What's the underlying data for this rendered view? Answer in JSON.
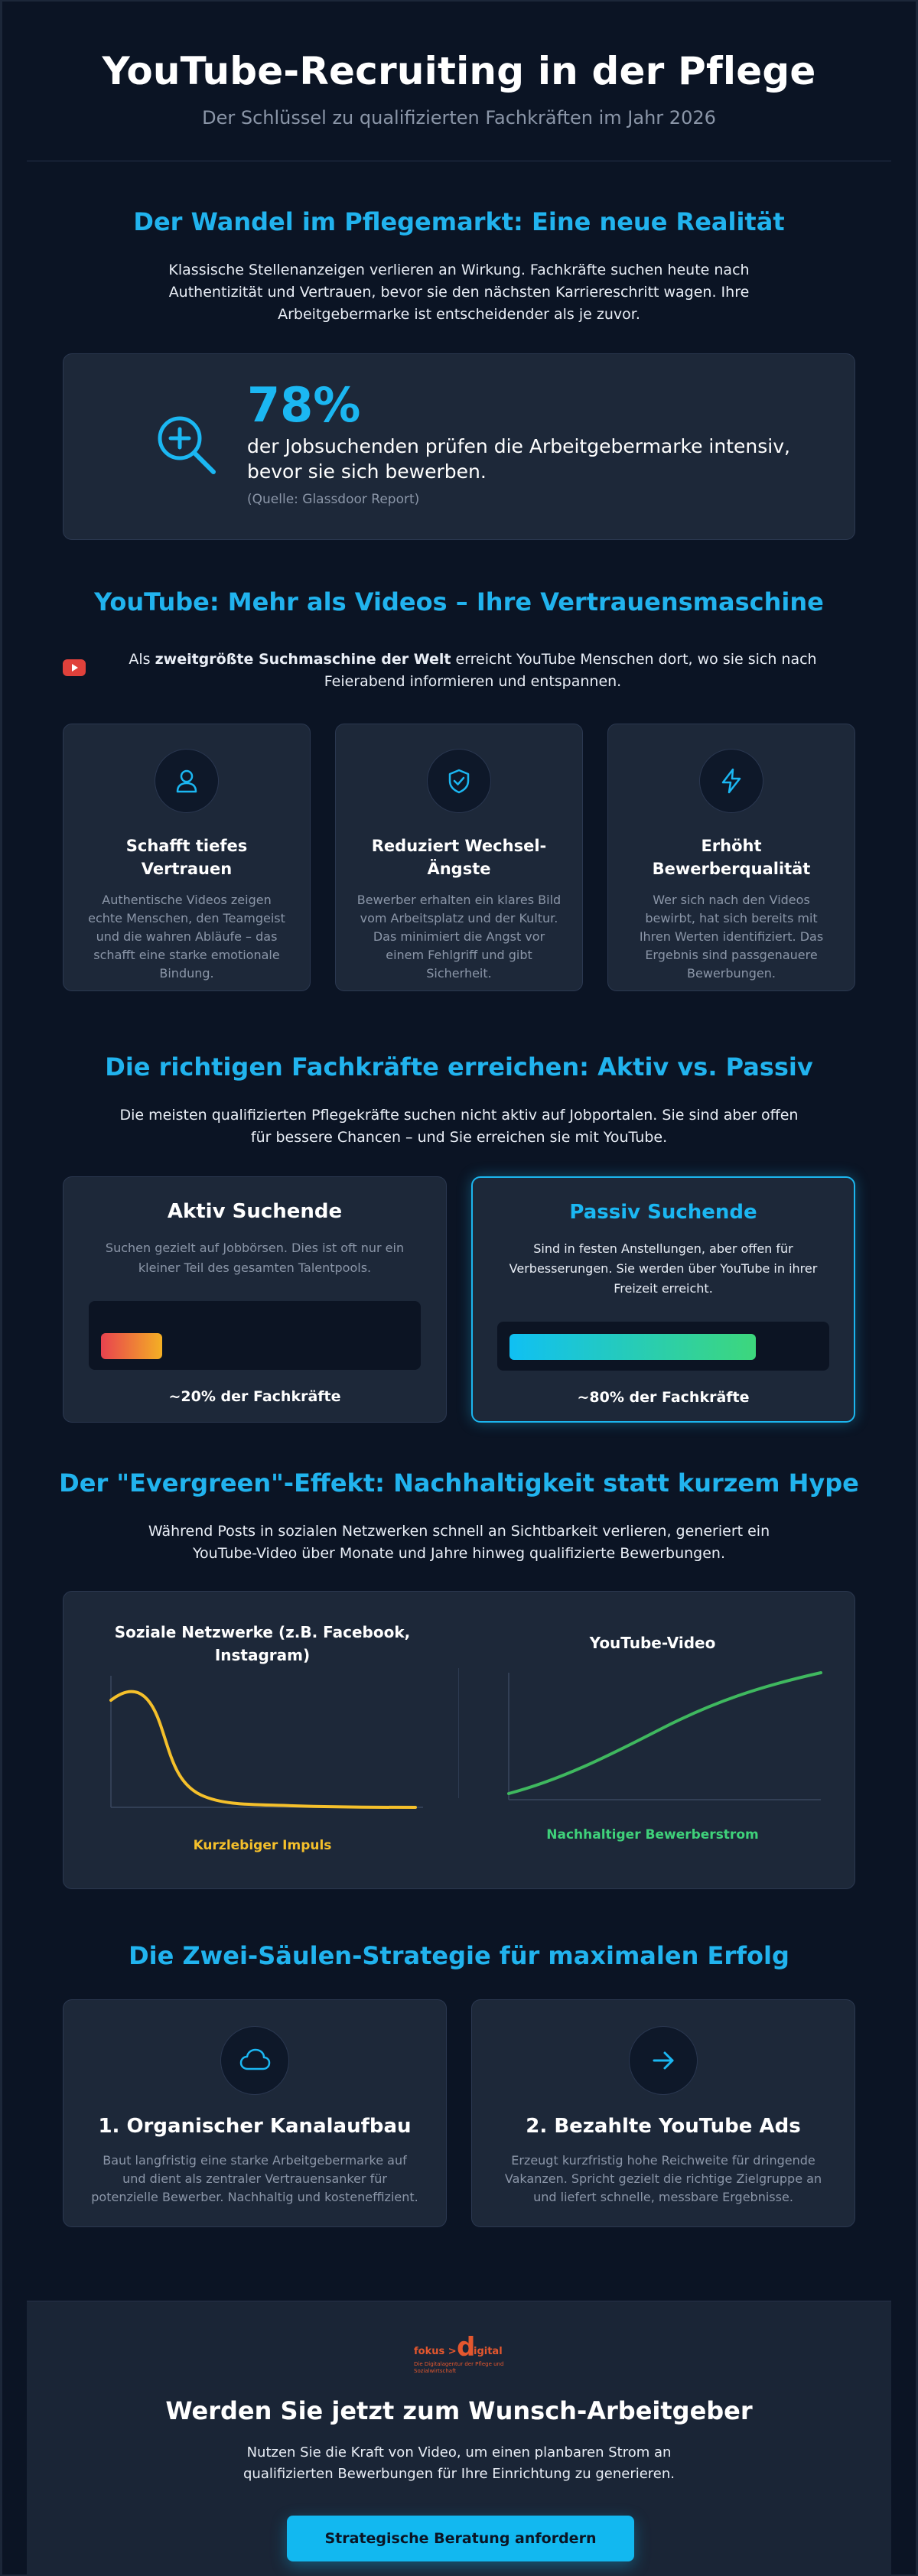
{
  "header": {
    "title": "YouTube-Recruiting in der Pflege",
    "subtitle": "Der Schlüssel zu qualifizierten Fachkräften im Jahr 2026"
  },
  "section1": {
    "title": "Der Wandel im Pflegemarkt: Eine neue Realität",
    "intro": "Klassische Stellenanzeigen verlieren an Wirkung. Fachkräfte suchen heute nach Authentizität und Vertrauen, bevor sie den nächsten Karriereschritt wagen. Ihre Arbeitgebermarke ist entscheidender als je zuvor.",
    "stat": {
      "icon": "search-plus-icon",
      "number": "78%",
      "text": "der Jobsuchenden prüfen die Arbeitgebermarke intensiv, bevor sie sich bewerben.",
      "source": "(Quelle: Glassdoor Report)"
    }
  },
  "section2": {
    "title": "YouTube: Mehr als Videos – Ihre Vertrauensmaschine",
    "intro_prefix": "Als ",
    "intro_bold": "zweitgrößte Suchmaschine der Welt",
    "intro_suffix": " erreicht YouTube Menschen dort, wo sie sich nach Feierabend informieren und entspannen.",
    "features": [
      {
        "icon": "user-icon",
        "title": "Schafft tiefes Vertrauen",
        "desc": "Authentische Videos zeigen echte Menschen, den Teamgeist und die wahren Abläufe – das schafft eine starke emotionale Bindung."
      },
      {
        "icon": "shield-check-icon",
        "title": "Reduziert Wechsel-Ängste",
        "desc": "Bewerber erhalten ein klares Bild vom Arbeitsplatz und der Kultur. Das minimiert die Angst vor einem Fehlgriff und gibt Sicherheit."
      },
      {
        "icon": "lightning-icon",
        "title": "Erhöht Bewerberqualität",
        "desc": "Wer sich nach den Videos bewirbt, hat sich bereits mit Ihren Werten identifiziert. Das Ergebnis sind passgenauere Bewerbungen."
      }
    ]
  },
  "section3": {
    "title": "Die richtigen Fachkräfte erreichen: Aktiv vs. Passiv",
    "intro": "Die meisten qualifizierten Pflegekräfte suchen nicht aktiv auf Jobportalen. Sie sind aber offen für bessere Chancen – und Sie erreichen sie mit YouTube.",
    "active": {
      "title": "Aktiv Suchende",
      "desc": "Suchen gezielt auf Jobbörsen. Dies ist oft nur ein kleiner Teil des gesamten Talentpools.",
      "share": 0.2,
      "label": "~20% der Fachkräfte"
    },
    "passive": {
      "title": "Passiv Suchende",
      "desc": "Sind in festen Anstellungen, aber offen für Verbesserungen. Sie werden über YouTube in ihrer Freizeit erreicht.",
      "share": 0.8,
      "label": "~80% der Fachkräfte"
    }
  },
  "section4": {
    "title": "Der \"Evergreen\"-Effekt: Nachhaltigkeit statt kurzem Hype",
    "intro": "Während Posts in sozialen Netzwerken schnell an Sichtbarkeit verlieren, generiert ein YouTube-Video über Monate und Jahre hinweg qualifizierte Bewerbungen.",
    "social": {
      "title": "Soziale Netzwerke (z.B. Facebook, Instagram)",
      "caption": "Kurzlebiger Impuls",
      "color": "#f5c02b"
    },
    "youtube": {
      "title": "YouTube-Video",
      "caption": "Nachhaltiger Bewerberstrom",
      "color": "#3fb85f"
    }
  },
  "section5": {
    "title": "Die Zwei-Säulen-Strategie für maximalen Erfolg",
    "pillars": [
      {
        "icon": "cloud-icon",
        "title": "1. Organischer Kanalaufbau",
        "desc": "Baut langfristig eine starke Arbeitgebermarke auf und dient als zentraler Vertrauensanker für potenzielle Bewerber. Nachhaltig und kosteneffizient."
      },
      {
        "icon": "arrow-right-icon",
        "title": "2. Bezahlte YouTube Ads",
        "desc": "Erzeugt kurzfristig hohe Reichweite für dringende Vakanzen. Spricht gezielt die richtige Zielgruppe an und liefert schnelle, messbare Ergebnisse."
      }
    ]
  },
  "cta": {
    "logo": {
      "part1": "fokus >",
      "part2": "d",
      "part3": "igital",
      "tagline": "Die Digitalagentur der Pflege und Sozialwirtschaft"
    },
    "title": "Werden Sie jetzt zum Wunsch-Arbeitgeber",
    "text": "Nutzen Sie die Kraft von Video, um einen planbaren Strom an qualifizierten Bewerbungen für Ihre Einrichtung zu generieren.",
    "button": "Strategische Beratung anfordern"
  },
  "colors": {
    "accent": "#1bb7f2",
    "background": "#0b1424",
    "card": "#1d2839",
    "muted_text": "#8b96a8"
  }
}
